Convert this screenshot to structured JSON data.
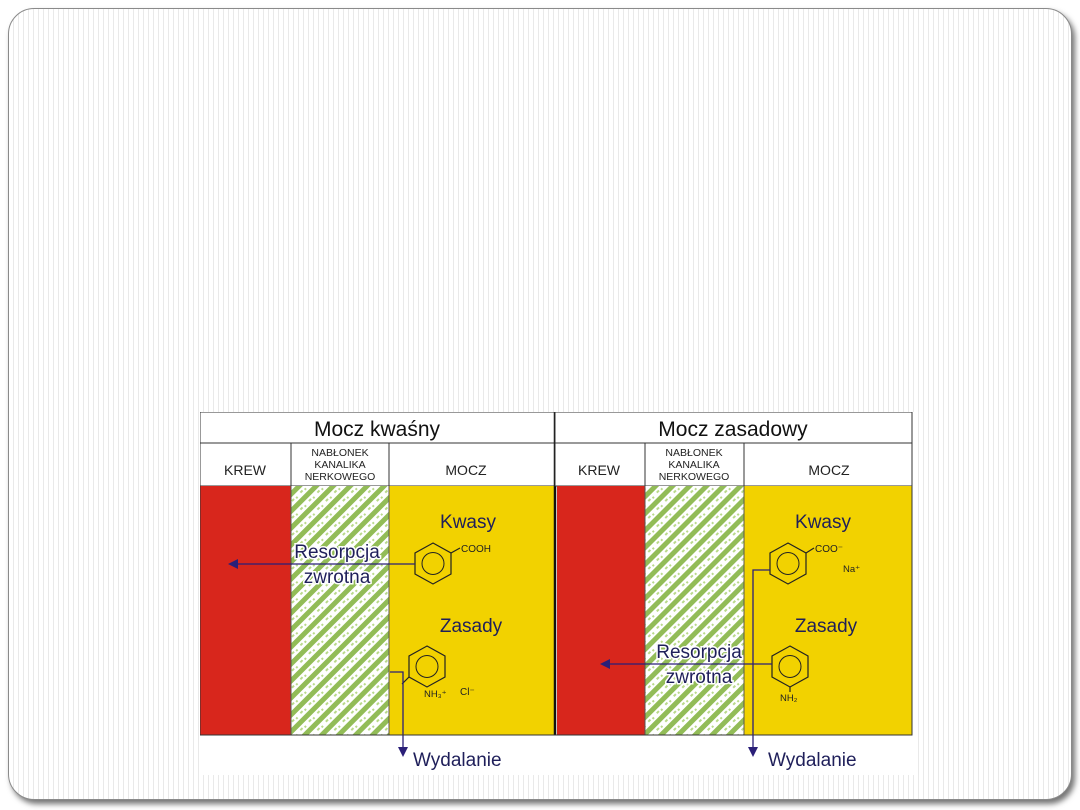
{
  "panels": [
    {
      "title": "Mocz kwaśny",
      "col_blood": "KREW",
      "col_epithelium_lines": [
        "NABŁONEK",
        "KANALIKA",
        "NERKOWEGO"
      ],
      "col_urine": "MOCZ",
      "acids_label": "Kwasy",
      "acid_group": "COOH",
      "acid_ion": "",
      "reabsorption_lines": [
        "Resorpcja",
        "zwrotna"
      ],
      "bases_label": "Zasady",
      "base_group": "NH₃⁺",
      "base_ion": "Cl⁻",
      "excretion": "Wydalanie"
    },
    {
      "title": "Mocz zasadowy",
      "col_blood": "KREW",
      "col_epithelium_lines": [
        "NABŁONEK",
        "KANALIKA",
        "NERKOWEGO"
      ],
      "col_urine": "MOCZ",
      "acids_label": "Kwasy",
      "acid_group": "COO⁻",
      "acid_ion": "Na⁺",
      "reabsorption_lines": [
        "Resorpcja",
        "zwrotna"
      ],
      "bases_label": "Zasady",
      "base_group": "NH₂",
      "base_ion": "",
      "excretion": "Wydalanie"
    }
  ],
  "colors": {
    "blood": "#d8261c",
    "urine": "#f2d200",
    "epithelium_stripe": "#7fb03a",
    "arrow": "#2a1f78"
  },
  "icons": [
    "benzene-ring-icon",
    "arrow-left-icon",
    "arrow-down-icon"
  ]
}
